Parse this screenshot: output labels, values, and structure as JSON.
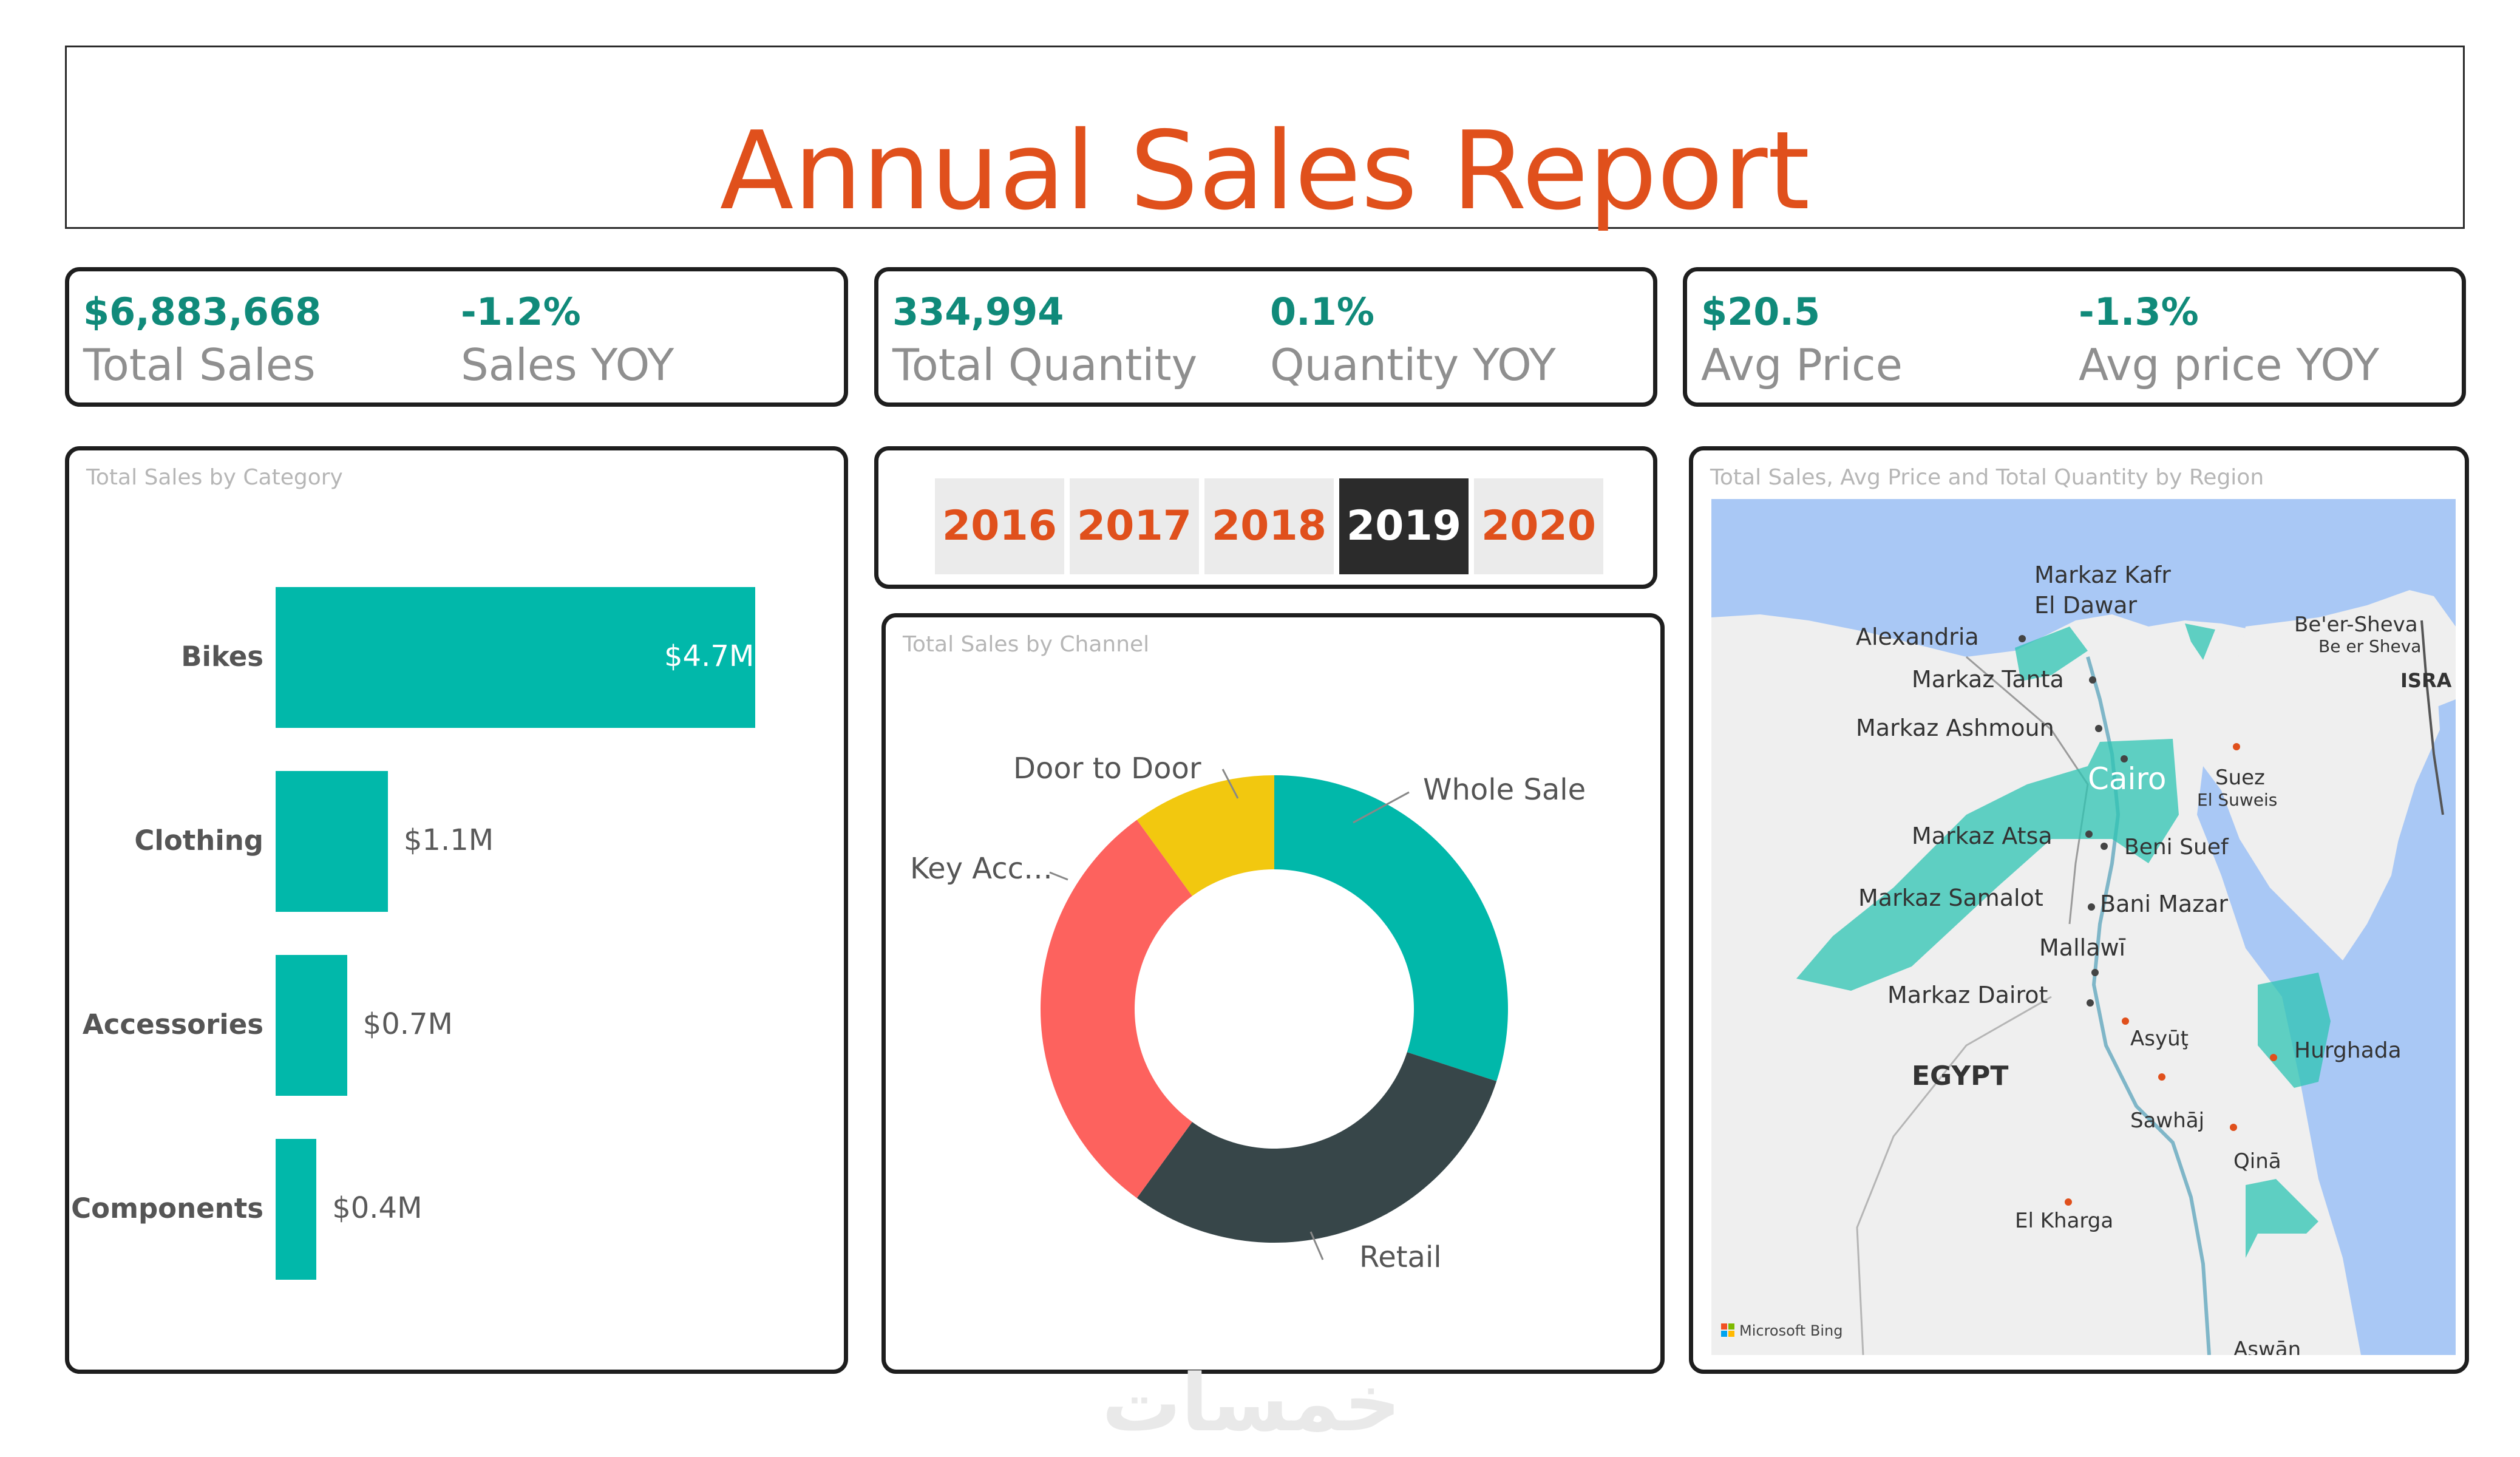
{
  "report": {
    "title": "Annual Sales Report"
  },
  "kpis": [
    {
      "value": "$6,883,668",
      "label": "Total Sales",
      "yoy_value": "-1.2%",
      "yoy_label": "Sales YOY"
    },
    {
      "value": "334,994",
      "label": "Total Quantity",
      "yoy_value": "0.1%",
      "yoy_label": "Quantity YOY"
    },
    {
      "value": "$20.5",
      "label": "Avg Price",
      "yoy_value": "-1.3%",
      "yoy_label": "Avg price YOY"
    }
  ],
  "category_chart": {
    "title": "Total Sales by Category"
  },
  "year_slicer": {
    "years": [
      "2016",
      "2017",
      "2018",
      "2019",
      "2020"
    ],
    "selected": "2019"
  },
  "channel_chart": {
    "title": "Total Sales by Channel"
  },
  "map": {
    "title": "Total Sales, Avg Price and Total Quantity by Region",
    "attribution": "Microsoft Bing",
    "labels": {
      "markaz_kafr": "Markaz Kafr",
      "el_dawar": "El Dawar",
      "alexandria": "Alexandria",
      "markaz_tanta": "Markaz Tanta",
      "markaz_ashmoun": "Markaz Ashmoun",
      "cairo": "Cairo",
      "suez": "Suez",
      "el_suweis": "El Suweis",
      "beer_sheva": "Be'er-Sheva",
      "be_er_sheva": "Be er Sheva",
      "isra": "ISRA",
      "markaz_atsa": "Markaz Atsa",
      "beni_suef": "Beni Suef",
      "markaz_samalot": "Markaz Samalot",
      "bani_mazar": "Bani Mazar",
      "mallawi": "Mallawī",
      "markaz_dairot": "Markaz Dairot",
      "asyut": "Asyūţ",
      "egypt": "EGYPT",
      "hurghada": "Hurghada",
      "sawhaj": "Sawhāj",
      "qina": "Qinā",
      "el_kharga": "El Kharga",
      "aswan": "Aswān"
    }
  },
  "colors": {
    "accent": "#e0501c",
    "kpi": "#108a7a",
    "teal": "#01b8aa",
    "dark": "#374649",
    "red": "#fd625e",
    "yellow": "#f2c80f"
  },
  "chart_data": [
    {
      "type": "bar",
      "orientation": "horizontal",
      "title": "Total Sales by Category",
      "categories": [
        "Bikes",
        "Clothing",
        "Accessories",
        "Components"
      ],
      "values": [
        4.7,
        1.1,
        0.7,
        0.4
      ],
      "value_labels": [
        "$4.7M",
        "$1.1M",
        "$0.7M",
        "$0.4M"
      ],
      "unit": "$M"
    },
    {
      "type": "pie",
      "donut": true,
      "title": "Total Sales by Channel",
      "categories": [
        "Whole Sale",
        "Retail",
        "Key Acc…",
        "Door to Door"
      ],
      "values": [
        30,
        30,
        30,
        10
      ],
      "colors": [
        "#01b8aa",
        "#374649",
        "#fd625e",
        "#f2c80f"
      ]
    }
  ]
}
